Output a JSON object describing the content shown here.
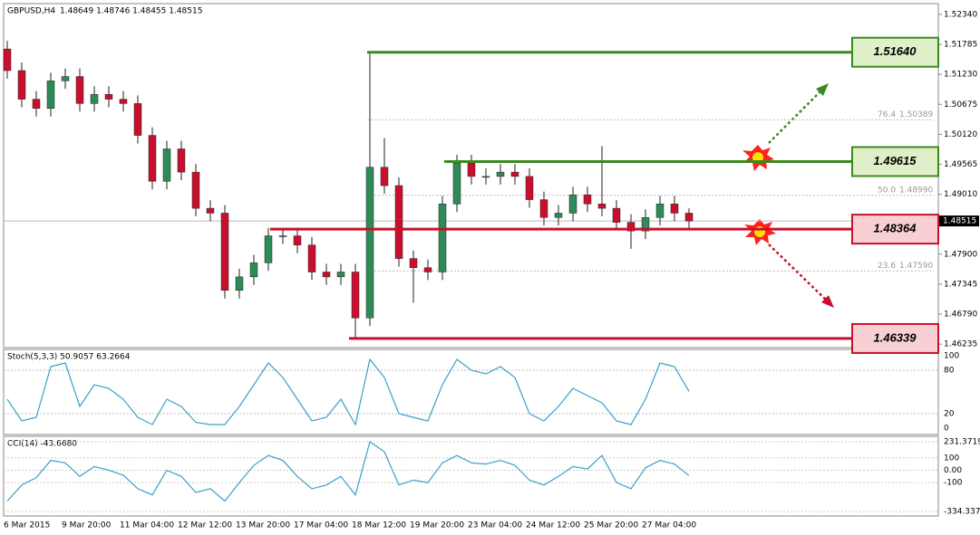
{
  "chart_data": {
    "type": "candlestick",
    "title": "GBPUSD,H4",
    "ohlc_text": "1.48649 1.48746 1.48455 1.48515",
    "categories": [
      "6 Mar 2015",
      null,
      null,
      null,
      "9 Mar 20:00",
      null,
      null,
      null,
      "11 Mar 04:00",
      null,
      null,
      null,
      "12 Mar 12:00",
      null,
      null,
      null,
      "13 Mar 20:00",
      null,
      null,
      null,
      "17 Mar 04:00",
      null,
      null,
      null,
      "18 Mar 12:00",
      null,
      null,
      null,
      "19 Mar 20:00",
      null,
      null,
      null,
      "23 Mar 04:00",
      null,
      null,
      null,
      "24 Mar 12:00",
      null,
      null,
      null,
      "25 Mar 20:00",
      null,
      null,
      null,
      "27 Mar 04:00",
      null,
      null,
      null
    ],
    "open": [
      1.517,
      1.513,
      1.5077,
      1.506,
      1.5111,
      1.5119,
      1.5069,
      1.5086,
      1.5077,
      1.5069,
      1.501,
      1.4925,
      1.4985,
      1.4942,
      1.4875,
      1.4866,
      1.4723,
      1.4748,
      1.4774,
      1.4824,
      1.4824,
      1.4807,
      1.4757,
      1.4748,
      1.4757,
      1.4672,
      1.4951,
      1.4917,
      1.4782,
      1.4765,
      1.4757,
      1.4883,
      1.4959,
      1.4934,
      1.4934,
      1.4942,
      1.4934,
      1.4891,
      1.4858,
      1.4866,
      1.49,
      1.4883,
      1.4875,
      1.4849,
      1.4833,
      1.4858,
      1.4883,
      1.4866
    ],
    "high": [
      1.5185,
      1.5145,
      1.5092,
      1.5126,
      1.5134,
      1.5134,
      1.5101,
      1.5101,
      1.5092,
      1.5084,
      1.5025,
      1.5,
      1.5,
      1.4957,
      1.489,
      1.4881,
      1.4763,
      1.4789,
      1.4839,
      1.4839,
      1.4839,
      1.4822,
      1.4772,
      1.4772,
      1.4772,
      1.5164,
      1.5005,
      1.4932,
      1.4797,
      1.478,
      1.4898,
      1.4974,
      1.4974,
      1.4949,
      1.4957,
      1.4957,
      1.4949,
      1.4906,
      1.4881,
      1.4915,
      1.4915,
      1.499,
      1.489,
      1.4864,
      1.4873,
      1.4898,
      1.4898,
      1.4875
    ],
    "low": [
      1.5115,
      1.5062,
      1.5045,
      1.5045,
      1.5096,
      1.5054,
      1.5054,
      1.5062,
      1.5054,
      1.4995,
      1.491,
      1.491,
      1.4927,
      1.486,
      1.4851,
      1.4708,
      1.4708,
      1.4733,
      1.4759,
      1.4809,
      1.4792,
      1.4742,
      1.4733,
      1.4733,
      1.4634,
      1.4657,
      1.4902,
      1.4767,
      1.47,
      1.4742,
      1.4742,
      1.4868,
      1.4919,
      1.4919,
      1.4919,
      1.4919,
      1.4876,
      1.4843,
      1.4843,
      1.4851,
      1.4868,
      1.486,
      1.4834,
      1.48,
      1.4818,
      1.4843,
      1.4851,
      1.4837
    ],
    "close": [
      1.513,
      1.5077,
      1.506,
      1.5111,
      1.5119,
      1.5069,
      1.5086,
      1.5077,
      1.5069,
      1.501,
      1.4925,
      1.4985,
      1.4942,
      1.4875,
      1.4866,
      1.4723,
      1.4748,
      1.4774,
      1.4824,
      1.4824,
      1.4807,
      1.4757,
      1.4748,
      1.4757,
      1.4672,
      1.4951,
      1.4917,
      1.4782,
      1.4765,
      1.4757,
      1.4883,
      1.4959,
      1.4934,
      1.4934,
      1.4942,
      1.4934,
      1.4891,
      1.4858,
      1.4866,
      1.49,
      1.4883,
      1.4875,
      1.4849,
      1.4833,
      1.4858,
      1.4883,
      1.4866,
      1.48515
    ],
    "bull_color": "#2e8b57",
    "bear_color": "#c8102e",
    "ylim": [
      1.4617,
      1.5254
    ],
    "yticks": [
      {
        "value": 1.5234,
        "label": "1.52340"
      },
      {
        "value": 1.51785,
        "label": "1.51785"
      },
      {
        "value": 1.5123,
        "label": "1.51230"
      },
      {
        "value": 1.50675,
        "label": "1.50675"
      },
      {
        "value": 1.5012,
        "label": "1.50120"
      },
      {
        "value": 1.49565,
        "label": "1.49565"
      },
      {
        "value": 1.4901,
        "label": "1.49010"
      },
      {
        "value": 1.479,
        "label": "1.47900"
      },
      {
        "value": 1.47345,
        "label": "1.47345"
      },
      {
        "value": 1.4679,
        "label": "1.46790"
      },
      {
        "value": 1.46235,
        "label": "1.46235"
      }
    ],
    "current_price": {
      "value": 1.48515,
      "label": "1.48515"
    },
    "levels": [
      {
        "value": 1.5164,
        "label": "1.51640",
        "color": "#3a8a1e"
      },
      {
        "value": 1.49615,
        "label": "1.49615",
        "color": "#3a8a1e"
      },
      {
        "value": 1.48364,
        "label": "1.48364",
        "color": "#c8102e"
      },
      {
        "value": 1.46339,
        "label": "1.46339",
        "color": "#c8102e"
      }
    ],
    "fib": [
      {
        "value": 1.50389,
        "level": "76.4",
        "label": "1.50389"
      },
      {
        "value": 1.4899,
        "level": "50.0",
        "label": "1.48990"
      },
      {
        "value": 1.4759,
        "level": "23.6",
        "label": "1.47590"
      }
    ],
    "stoch": {
      "title": "Stoch(5,3,3) 50.9057 63.2664",
      "color": "#3aa0c8",
      "ylim": [
        -8.75,
        108.75
      ],
      "yticks": [
        100,
        80,
        20,
        0
      ],
      "values": [
        40,
        10,
        15,
        85,
        90,
        30,
        60,
        55,
        40,
        15,
        5,
        40,
        30,
        8,
        5,
        5,
        30,
        60,
        90,
        70,
        40,
        10,
        15,
        40,
        5,
        95,
        70,
        20,
        15,
        10,
        60,
        95,
        80,
        75,
        85,
        70,
        20,
        10,
        30,
        55,
        45,
        35,
        10,
        5,
        40,
        90,
        85,
        50.9057
      ]
    },
    "cci": {
      "title": "CCI(14) -43.6680",
      "color": "#3aa0c8",
      "ylim": [
        -371,
        275
      ],
      "yticks": [
        {
          "value": 231.3719,
          "label": "231.3719"
        },
        100,
        {
          "value": 0,
          "label": "0.00"
        },
        -100,
        {
          "value": -334.337,
          "label": "-334.337"
        }
      ],
      "values": [
        -250,
        -120,
        -60,
        80,
        60,
        -50,
        30,
        0,
        -40,
        -150,
        -200,
        0,
        -50,
        -180,
        -150,
        -250,
        -100,
        40,
        120,
        80,
        -50,
        -150,
        -120,
        -50,
        -200,
        231,
        150,
        -120,
        -80,
        -100,
        60,
        120,
        60,
        50,
        80,
        40,
        -80,
        -120,
        -50,
        30,
        10,
        120,
        -100,
        -150,
        20,
        80,
        50,
        -43.668
      ]
    }
  }
}
